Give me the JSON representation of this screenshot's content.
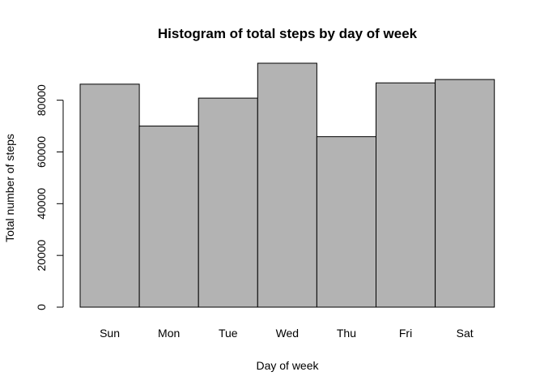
{
  "chart_data": {
    "type": "bar",
    "title": "Histogram of total steps by day of week",
    "xlabel": "Day of week",
    "ylabel": "Total number of steps",
    "categories": [
      "Sun",
      "Mon",
      "Tue",
      "Wed",
      "Thu",
      "Fri",
      "Sat"
    ],
    "values": [
      86200,
      70000,
      80800,
      94300,
      65900,
      86700,
      88000
    ],
    "yticks": [
      0,
      20000,
      40000,
      60000,
      80000
    ],
    "ytick_labels": [
      "0",
      "20000",
      "40000",
      "60000",
      "80000"
    ],
    "ylim": [
      0,
      94300
    ],
    "bar_color": "#b3b3b3",
    "border_color": "#000000",
    "grid": false,
    "legend": "none"
  }
}
